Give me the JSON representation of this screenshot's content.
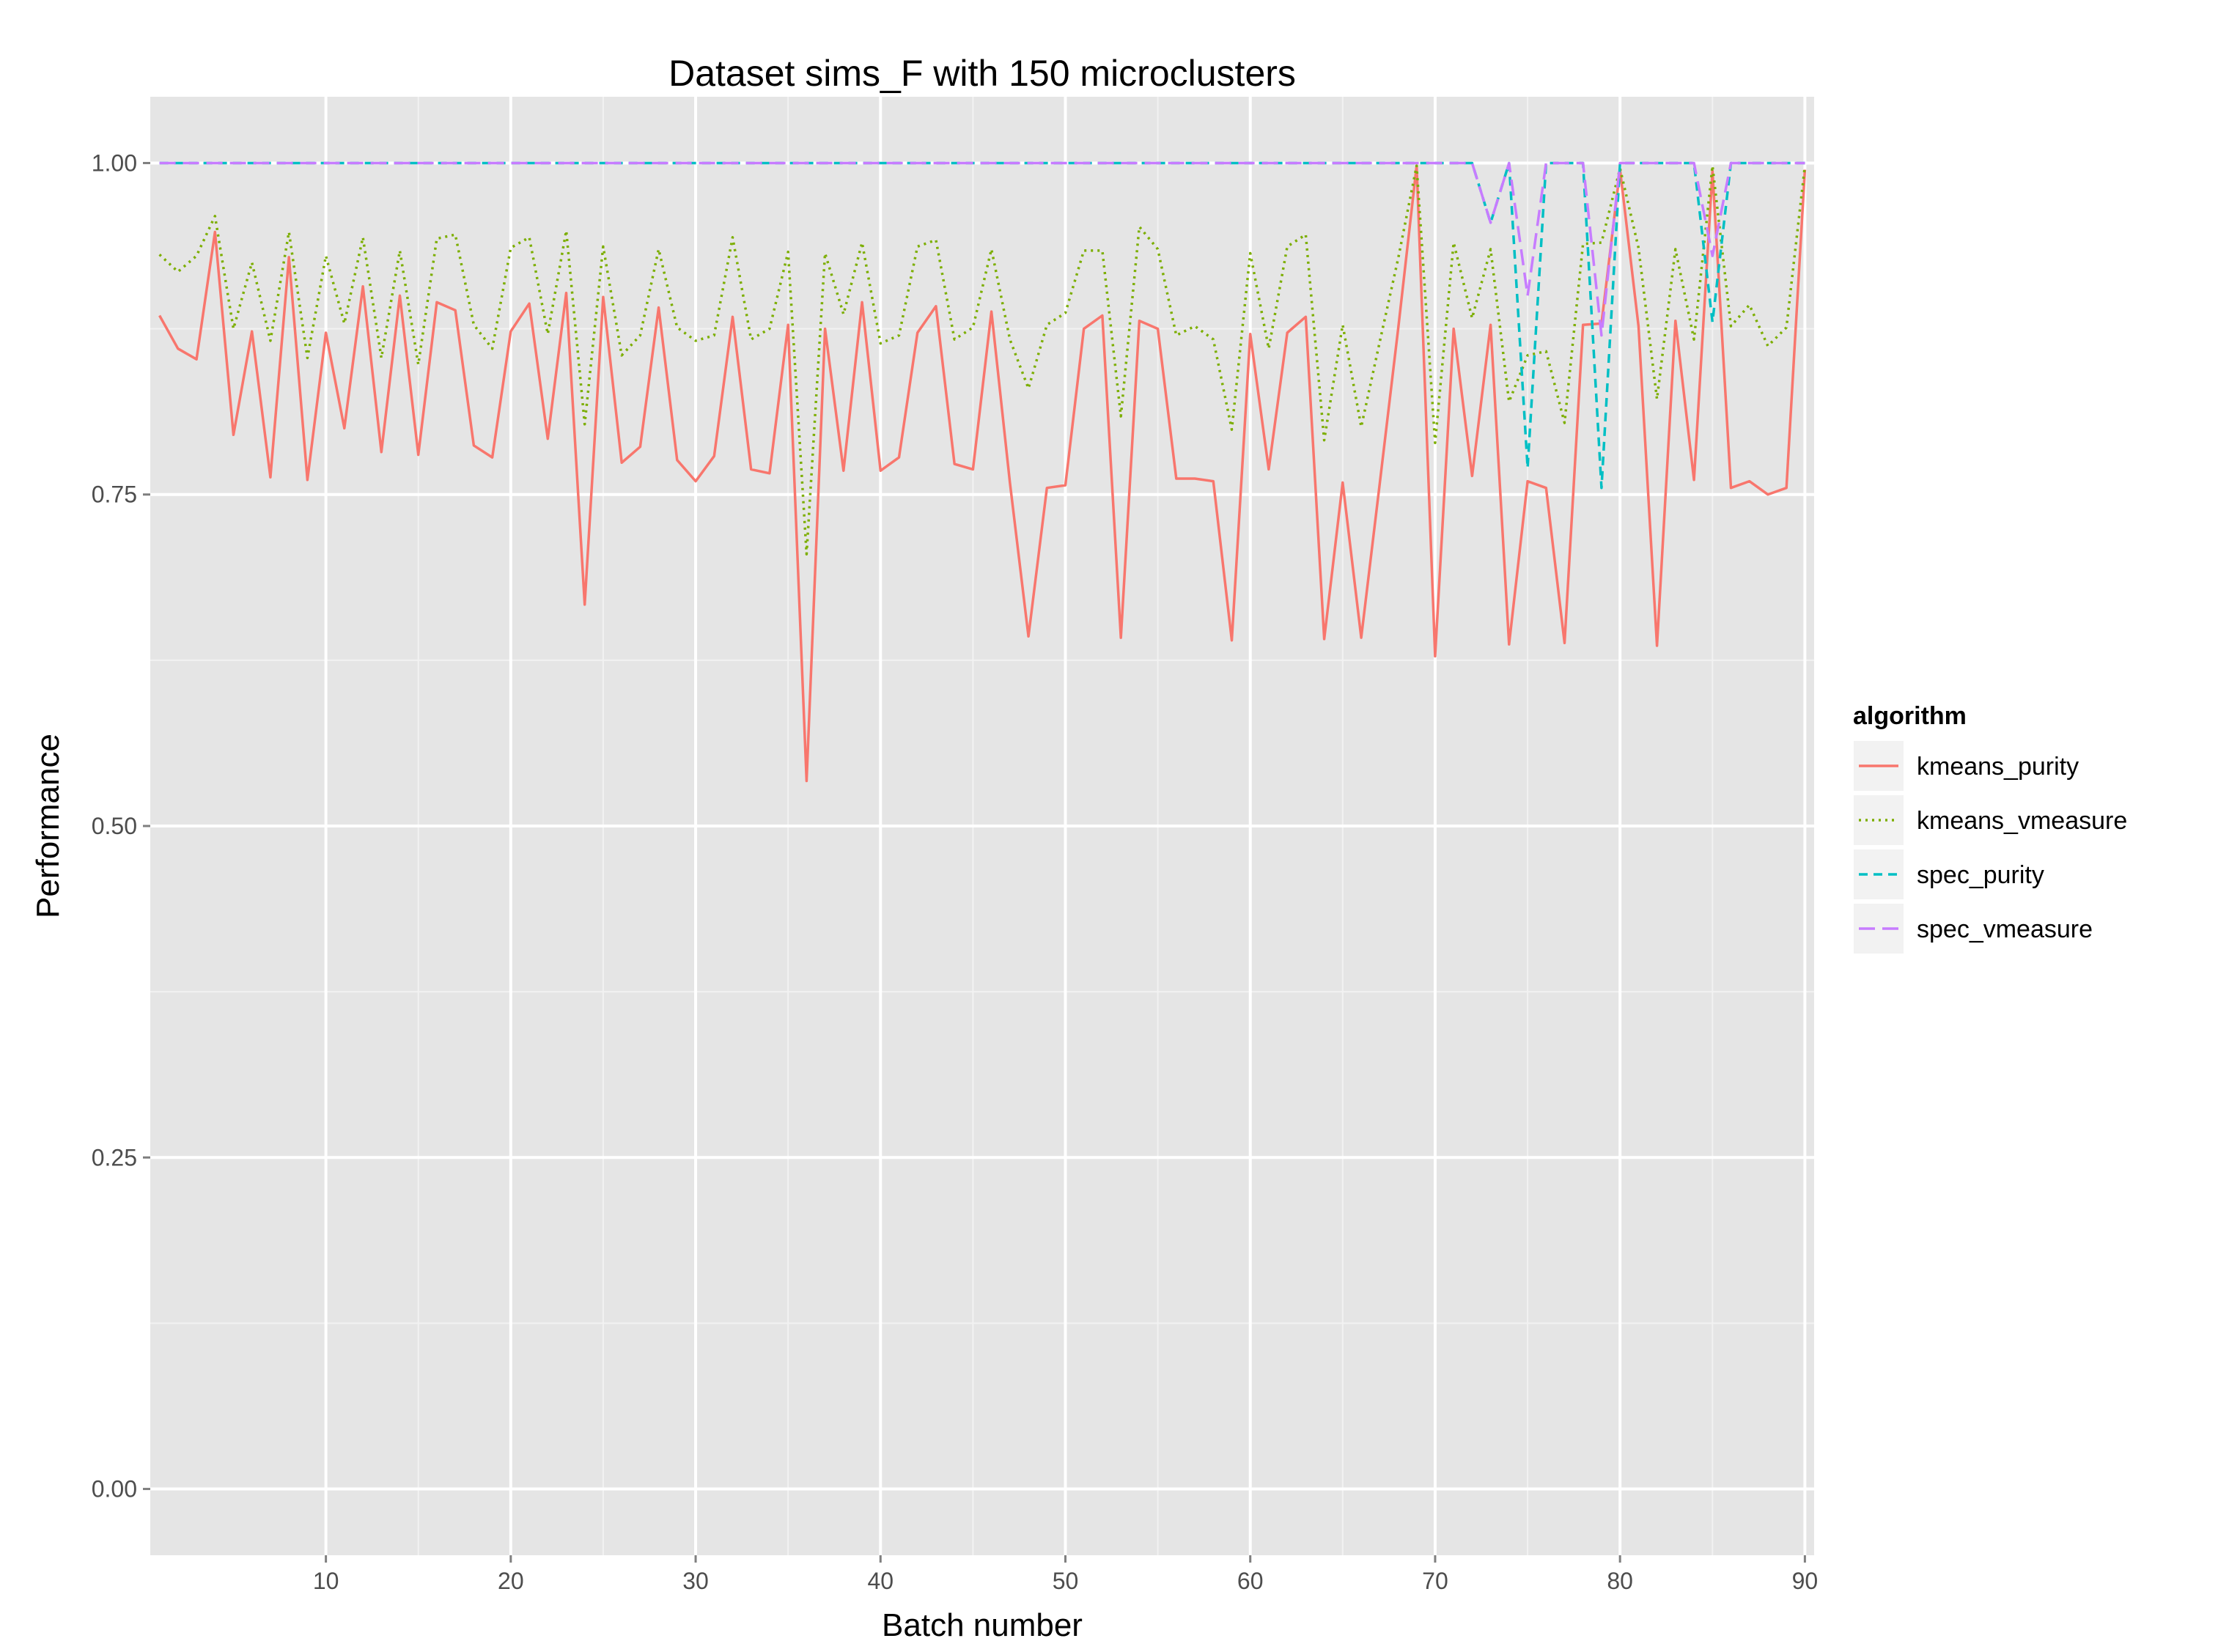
{
  "chart_data": {
    "type": "line",
    "title": "Dataset sims_F with 150 microclusters",
    "xlabel": "Batch number",
    "ylabel": "Performance",
    "xlim": [
      0.5,
      90.5
    ],
    "ylim": [
      -0.05,
      1.05
    ],
    "x_ticks": [
      10,
      20,
      30,
      40,
      50,
      60,
      70,
      80,
      90
    ],
    "y_ticks": [
      "0.00",
      "0.25",
      "0.50",
      "0.75",
      "1.00"
    ],
    "y_tick_values": [
      0,
      0.25,
      0.5,
      0.75,
      1.0
    ],
    "grid": true,
    "legend": {
      "title": "algorithm",
      "position": "right"
    },
    "series": [
      {
        "name": "kmeans_purity",
        "color": "#F8766D",
        "dash": "solid",
        "values": [
          0.885,
          0.86,
          0.852,
          0.948,
          0.795,
          0.873,
          0.763,
          0.929,
          0.761,
          0.872,
          0.8,
          0.907,
          0.782,
          0.9,
          0.78,
          0.895,
          0.889,
          0.787,
          0.778,
          0.873,
          0.894,
          0.792,
          0.902,
          0.667,
          0.899,
          0.774,
          0.786,
          0.891,
          0.776,
          0.76,
          0.779,
          0.884,
          0.769,
          0.766,
          0.878,
          0.534,
          0.875,
          0.768,
          0.895,
          0.768,
          0.778,
          0.872,
          0.892,
          0.773,
          0.769,
          0.888,
          0.759,
          0.643,
          0.755,
          0.757,
          0.875,
          0.885,
          0.642,
          0.881,
          0.875,
          0.762,
          0.762,
          0.76,
          0.64,
          0.871,
          0.769,
          0.872,
          0.884,
          0.641,
          0.759,
          0.642,
          0.758,
          0.875,
          0.998,
          0.628,
          0.875,
          0.764,
          0.878,
          0.637,
          0.76,
          0.755,
          0.638,
          0.878,
          0.879,
          0.995,
          0.877,
          0.636,
          0.881,
          0.761,
          0.994,
          0.755,
          0.76,
          0.75,
          0.755,
          0.995
        ]
      },
      {
        "name": "kmeans_vmeasure",
        "color": "#7CAE00",
        "dash": "dotted",
        "values": [
          0.931,
          0.918,
          0.93,
          0.96,
          0.875,
          0.925,
          0.866,
          0.948,
          0.853,
          0.93,
          0.879,
          0.944,
          0.853,
          0.934,
          0.848,
          0.943,
          0.946,
          0.878,
          0.86,
          0.936,
          0.944,
          0.871,
          0.949,
          0.803,
          0.937,
          0.855,
          0.87,
          0.935,
          0.876,
          0.866,
          0.87,
          0.944,
          0.867,
          0.875,
          0.933,
          0.705,
          0.932,
          0.886,
          0.94,
          0.864,
          0.87,
          0.937,
          0.942,
          0.867,
          0.876,
          0.935,
          0.867,
          0.83,
          0.878,
          0.887,
          0.934,
          0.934,
          0.809,
          0.952,
          0.935,
          0.87,
          0.877,
          0.867,
          0.799,
          0.932,
          0.86,
          0.937,
          0.946,
          0.791,
          0.878,
          0.801,
          0.865,
          0.928,
          0.998,
          0.789,
          0.94,
          0.883,
          0.935,
          0.82,
          0.855,
          0.858,
          0.804,
          0.939,
          0.94,
          0.996,
          0.936,
          0.822,
          0.935,
          0.867,
          0.998,
          0.877,
          0.893,
          0.862,
          0.876,
          0.998
        ]
      },
      {
        "name": "spec_purity",
        "color": "#00BFC4",
        "dash": "dashed",
        "values": [
          1,
          1,
          1,
          1,
          1,
          1,
          1,
          1,
          1,
          1,
          1,
          1,
          1,
          1,
          1,
          1,
          1,
          1,
          1,
          1,
          1,
          1,
          1,
          1,
          1,
          1,
          1,
          1,
          1,
          1,
          1,
          1,
          1,
          1,
          1,
          1,
          1,
          1,
          1,
          1,
          1,
          1,
          1,
          1,
          1,
          1,
          1,
          1,
          1,
          1,
          1,
          1,
          1,
          1,
          1,
          1,
          1,
          1,
          1,
          1,
          1,
          1,
          1,
          1,
          1,
          1,
          1,
          1,
          1,
          1,
          1,
          1,
          0.955,
          1,
          0.77,
          1,
          1,
          1,
          0.755,
          1,
          1,
          1,
          1,
          1,
          0.88,
          1,
          1,
          1,
          1,
          1
        ]
      },
      {
        "name": "spec_vmeasure",
        "color": "#C77CFF",
        "dash": "longdash",
        "values": [
          1,
          1,
          1,
          1,
          1,
          1,
          1,
          1,
          1,
          1,
          1,
          1,
          1,
          1,
          1,
          1,
          1,
          1,
          1,
          1,
          1,
          1,
          1,
          1,
          1,
          1,
          1,
          1,
          1,
          1,
          1,
          1,
          1,
          1,
          1,
          1,
          1,
          1,
          1,
          1,
          1,
          1,
          1,
          1,
          1,
          1,
          1,
          1,
          1,
          1,
          1,
          1,
          1,
          1,
          1,
          1,
          1,
          1,
          1,
          1,
          1,
          1,
          1,
          1,
          1,
          1,
          1,
          1,
          1,
          1,
          1,
          1,
          0.955,
          1,
          0.9,
          1,
          1,
          1,
          0.87,
          1,
          1,
          1,
          1,
          1,
          0.93,
          1,
          1,
          1,
          1,
          1
        ]
      }
    ]
  }
}
